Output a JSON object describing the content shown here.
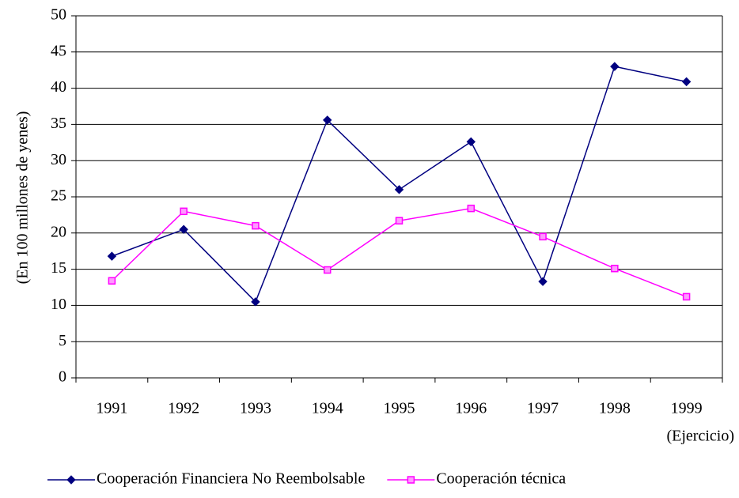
{
  "chart_data": {
    "type": "line",
    "y_label": "(En 100 millones de yenes)",
    "x_label": "(Ejercicio)",
    "categories": [
      "1991",
      "1992",
      "1993",
      "1994",
      "1995",
      "1996",
      "1997",
      "1998",
      "1999"
    ],
    "series": [
      {
        "name": "Cooperación Financiera No Reembolsable",
        "color": "#000080",
        "marker": "diamond",
        "values": [
          16.8,
          20.5,
          10.5,
          35.6,
          26.0,
          32.6,
          13.3,
          43.0,
          40.9
        ]
      },
      {
        "name": "Cooperación técnica",
        "color": "#ff00ff",
        "marker": "square",
        "values": [
          13.4,
          23.0,
          21.0,
          14.9,
          21.7,
          23.4,
          19.5,
          15.1,
          11.2
        ]
      }
    ],
    "ylim": [
      0,
      50
    ],
    "yticks": [
      0,
      5,
      10,
      15,
      20,
      25,
      30,
      35,
      40,
      45,
      50
    ],
    "grid": true,
    "legend": "bottom"
  }
}
